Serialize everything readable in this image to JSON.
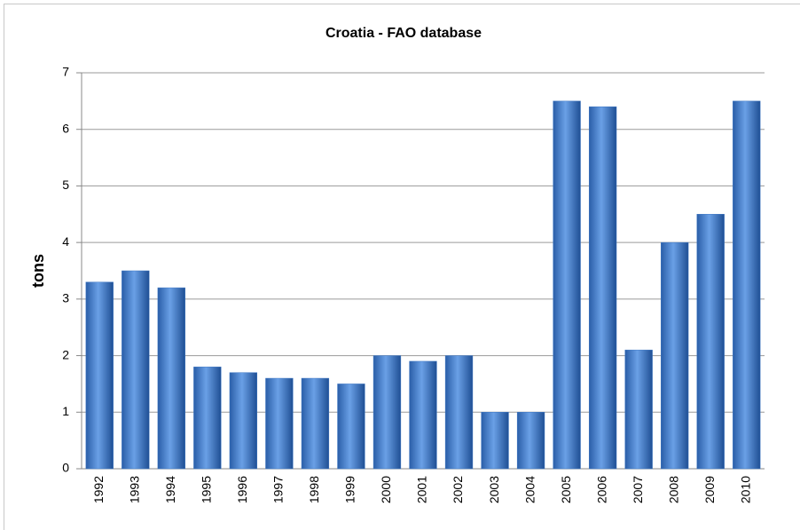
{
  "chart_data": {
    "type": "bar",
    "title": "Croatia  - FAO  database",
    "y_label": "tons",
    "categories": [
      "1992",
      "1993",
      "1994",
      "1995",
      "1996",
      "1997",
      "1998",
      "1999",
      "2000",
      "2001",
      "2002",
      "2003",
      "2004",
      "2005",
      "2006",
      "2007",
      "2008",
      "2009",
      "2010"
    ],
    "values": [
      3.3,
      3.5,
      3.2,
      1.8,
      1.7,
      1.6,
      1.6,
      1.5,
      2.0,
      1.9,
      2.0,
      1.0,
      1.0,
      6.5,
      6.4,
      2.1,
      4.0,
      4.5,
      6.5
    ],
    "color": "#3f78c4",
    "ylim": [
      0,
      7
    ],
    "yticks": [
      0,
      1,
      2,
      3,
      4,
      5,
      6,
      7
    ],
    "grid": true
  }
}
